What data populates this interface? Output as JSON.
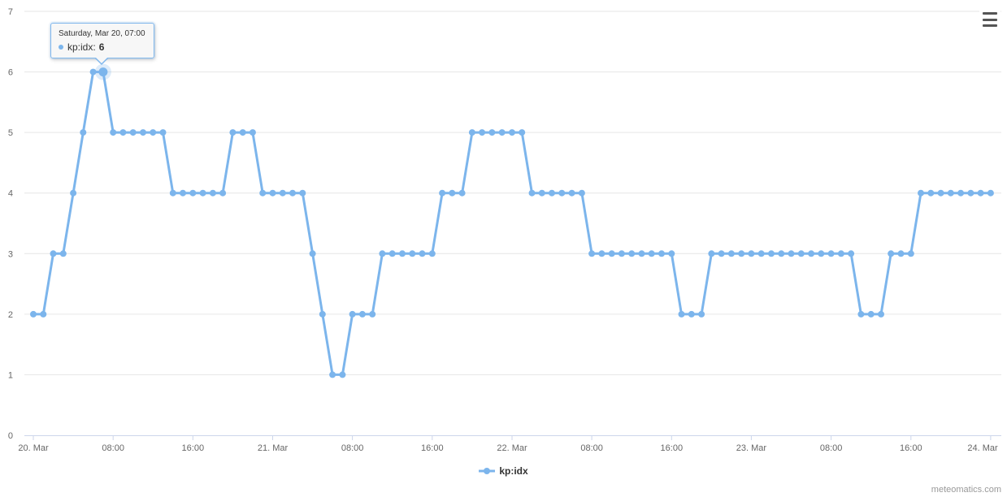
{
  "chart_data": {
    "type": "line",
    "title": "",
    "xlabel": "",
    "ylabel": "",
    "x_start": "Saturday, Mar 20, 00:00",
    "x_interval_hours": 1,
    "x_span_hours": 96,
    "ylim": [
      0,
      7
    ],
    "grid": true,
    "legend_position": "bottom-center",
    "y_ticks": [
      "0",
      "1",
      "2",
      "3",
      "4",
      "5",
      "6",
      "7"
    ],
    "x_ticks": [
      {
        "hour": 0,
        "label": "20. Mar"
      },
      {
        "hour": 8,
        "label": "08:00"
      },
      {
        "hour": 16,
        "label": "16:00"
      },
      {
        "hour": 24,
        "label": "21. Mar"
      },
      {
        "hour": 32,
        "label": "08:00"
      },
      {
        "hour": 40,
        "label": "16:00"
      },
      {
        "hour": 48,
        "label": "22. Mar"
      },
      {
        "hour": 56,
        "label": "08:00"
      },
      {
        "hour": 64,
        "label": "16:00"
      },
      {
        "hour": 72,
        "label": "23. Mar"
      },
      {
        "hour": 80,
        "label": "08:00"
      },
      {
        "hour": 88,
        "label": "16:00"
      },
      {
        "hour": 96,
        "label": "24. Mar"
      }
    ],
    "series": [
      {
        "name": "kp:idx",
        "color": "#7cb5ec",
        "marker": "circle-icon",
        "values": [
          2,
          2,
          3,
          3,
          4,
          5,
          6,
          6,
          5,
          5,
          5,
          5,
          5,
          5,
          4,
          4,
          4,
          4,
          4,
          4,
          5,
          5,
          5,
          4,
          4,
          4,
          4,
          4,
          3,
          2,
          1,
          1,
          2,
          2,
          2,
          3,
          3,
          3,
          3,
          3,
          3,
          4,
          4,
          4,
          5,
          5,
          5,
          5,
          5,
          5,
          4,
          4,
          4,
          4,
          4,
          4,
          3,
          3,
          3,
          3,
          3,
          3,
          3,
          3,
          3,
          2,
          2,
          2,
          3,
          3,
          3,
          3,
          3,
          3,
          3,
          3,
          3,
          3,
          3,
          3,
          3,
          3,
          3,
          2,
          2,
          2,
          3,
          3,
          3,
          4,
          4,
          4,
          4,
          4,
          4,
          4,
          4
        ]
      }
    ],
    "hover_index": 7
  },
  "tooltip": {
    "header": "Saturday, Mar 20, 07:00",
    "series_label": "kp:idx:",
    "value": "6"
  },
  "legend": {
    "label": "kp:idx"
  },
  "credits": {
    "text": "meteomatics.com"
  },
  "icons": {
    "context_menu": "hamburger-icon",
    "series_marker": "circle-icon",
    "legend_symbol": "line-with-dot-icon"
  },
  "colors": {
    "series": "#7cb5ec",
    "grid": "#e6e6e6",
    "axis": "#ccd6eb",
    "tick_label": "#666666",
    "legend_text": "#333333",
    "tooltip_border": "#7cb5ec",
    "tooltip_bg": "#f7f7f7",
    "tooltip_text": "#333333",
    "credits_text": "#999999",
    "menu_icon": "#555555",
    "halo": "rgba(124,181,236,0.25)"
  }
}
